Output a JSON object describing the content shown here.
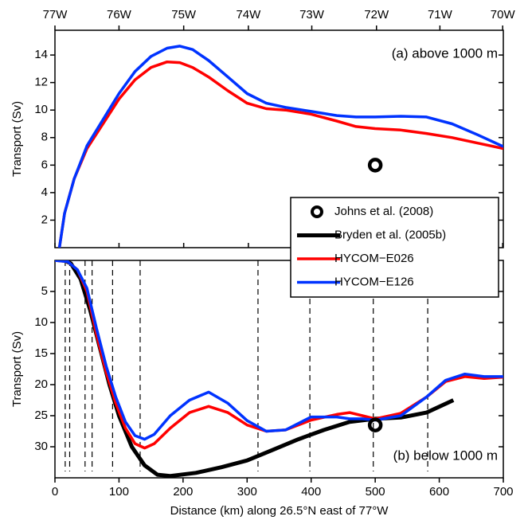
{
  "chart_data": [
    {
      "type": "line",
      "annotation": "(a) above 1000 m",
      "ylabel": "Transport (Sv)",
      "xlim": [
        0,
        700
      ],
      "ylim": [
        0,
        15.8
      ],
      "yticks": [
        2,
        4,
        6,
        8,
        10,
        12,
        14
      ],
      "x2ticks": [
        {
          "value": 0,
          "label": "77W"
        },
        {
          "value": 100,
          "label": "76W"
        },
        {
          "value": 201,
          "label": "75W"
        },
        {
          "value": 302,
          "label": "74W"
        },
        {
          "value": 401,
          "label": "73W"
        },
        {
          "value": 502,
          "label": "72W"
        },
        {
          "value": 601,
          "label": "71W"
        },
        {
          "value": 699,
          "label": "70W"
        }
      ],
      "series": [
        {
          "color": "#000000",
          "marker": "ring",
          "x": [
            500
          ],
          "values": [
            6
          ]
        },
        {
          "color": "#ff0000",
          "x": [
            7,
            15,
            30,
            50,
            75,
            100,
            125,
            150,
            175,
            195,
            215,
            240,
            270,
            300,
            330,
            360,
            400,
            440,
            470,
            500,
            540,
            580,
            620,
            660,
            700
          ],
          "values": [
            0,
            2.5,
            5,
            7.2,
            9,
            10.8,
            12.2,
            13.1,
            13.5,
            13.45,
            13.1,
            12.4,
            11.4,
            10.5,
            10.1,
            10.0,
            9.7,
            9.2,
            8.8,
            8.65,
            8.55,
            8.3,
            8.0,
            7.6,
            7.2
          ]
        },
        {
          "color": "#0033ff",
          "x": [
            7,
            15,
            30,
            50,
            75,
            100,
            125,
            150,
            175,
            195,
            215,
            240,
            270,
            300,
            330,
            360,
            400,
            440,
            470,
            500,
            540,
            580,
            620,
            660,
            700
          ],
          "values": [
            0,
            2.5,
            5,
            7.4,
            9.3,
            11.2,
            12.8,
            13.9,
            14.5,
            14.65,
            14.4,
            13.6,
            12.4,
            11.2,
            10.5,
            10.2,
            9.9,
            9.6,
            9.5,
            9.5,
            9.55,
            9.5,
            9.0,
            8.2,
            7.35
          ]
        }
      ]
    },
    {
      "type": "line",
      "annotation": "(b) below 1000 m",
      "ylabel": "Transport (Sv)",
      "xlabel": "Distance (km) along 26.5°N east of 77°W",
      "xlim": [
        0,
        700
      ],
      "ylim": [
        35,
        0
      ],
      "xticks": [
        0,
        100,
        200,
        300,
        400,
        500,
        600,
        700
      ],
      "yticks": [
        5,
        10,
        15,
        20,
        25,
        30
      ],
      "vlines": [
        16,
        23,
        47,
        58,
        90,
        133,
        317,
        398,
        497,
        582
      ],
      "legend": "upper right",
      "series": [
        {
          "name": "Johns et al. (2008)",
          "color": "#000000",
          "marker": "ring",
          "x": [
            500
          ],
          "values": [
            26.5
          ]
        },
        {
          "name": "Bryden et al. (2005b)",
          "color": "#000000",
          "x": [
            15,
            25,
            40,
            55,
            70,
            85,
            100,
            120,
            140,
            160,
            180,
            220,
            260,
            300,
            340,
            380,
            420,
            460,
            500,
            540,
            580,
            622
          ],
          "values": [
            0,
            0.5,
            3,
            8,
            14,
            20,
            25,
            30,
            33,
            34.5,
            34.7,
            34.2,
            33.3,
            32.2,
            30.5,
            28.8,
            27.3,
            26,
            25.5,
            25.3,
            24.5,
            22.5
          ]
        },
        {
          "name": "HYCOM−E026",
          "color": "#ff0000",
          "x": [
            0,
            20,
            35,
            50,
            65,
            80,
            95,
            110,
            125,
            140,
            155,
            180,
            210,
            240,
            270,
            300,
            330,
            360,
            400,
            440,
            460,
            480,
            500,
            540,
            580,
            610,
            640,
            670,
            700
          ],
          "values": [
            0,
            0.2,
            1.5,
            5,
            12,
            18,
            23,
            27,
            29.5,
            30.2,
            29.5,
            27,
            24.5,
            23.5,
            24.5,
            26.5,
            27.5,
            27.3,
            25.7,
            24.8,
            24.5,
            25,
            25.5,
            24.6,
            22,
            19.5,
            18.7,
            19,
            18.8
          ]
        },
        {
          "name": "HYCOM−E126",
          "color": "#0033ff",
          "x": [
            0,
            20,
            35,
            50,
            65,
            80,
            95,
            110,
            125,
            140,
            155,
            180,
            210,
            240,
            270,
            300,
            330,
            360,
            400,
            440,
            460,
            480,
            500,
            540,
            580,
            610,
            640,
            670,
            700
          ],
          "values": [
            0,
            0.2,
            1.5,
            4.5,
            11,
            17,
            22,
            26,
            28.2,
            28.8,
            28,
            25,
            22.5,
            21.2,
            23,
            25.8,
            27.5,
            27.3,
            25.2,
            25.2,
            25.5,
            25.5,
            25.7,
            25,
            22,
            19.3,
            18.3,
            18.7,
            18.7
          ]
        }
      ]
    }
  ]
}
